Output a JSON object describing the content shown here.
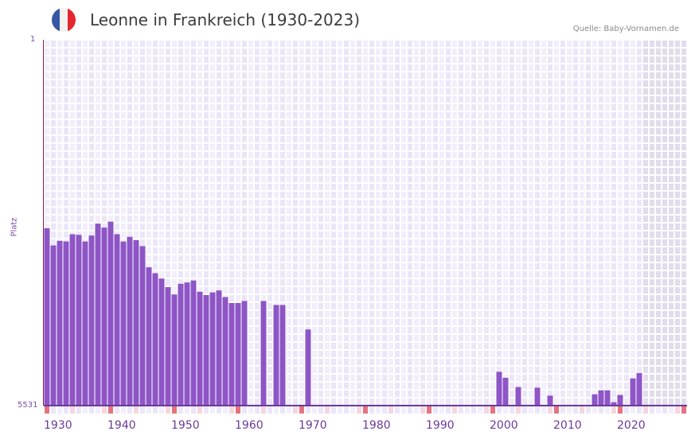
{
  "header": {
    "title": "Leonne in Frankreich (1930-2023)",
    "source": "Quelle: Baby-Vornamen.de",
    "flag_colors": [
      "#3557a6",
      "#f2f2f2",
      "#e5262f"
    ]
  },
  "colors": {
    "bar": "#8e55c6",
    "grid_a": "#f2eefb",
    "grid_b": "#ebe6f7",
    "shade": "#e2dcec",
    "marker_strong": "#e5737e",
    "marker_light": "#f5d6df",
    "axis": "#6a3a9a"
  },
  "chart_data": {
    "type": "bar",
    "title": "Leonne in Frankreich (1930-2023)",
    "xlabel": "",
    "ylabel": "Platz",
    "ylim": [
      5531,
      1
    ],
    "y_ticks": [
      "1",
      "5531"
    ],
    "x_ticks": [
      "1930",
      "1940",
      "1950",
      "1960",
      "1970",
      "1980",
      "1990",
      "2000",
      "2010",
      "2020"
    ],
    "x": [
      1930,
      1931,
      1932,
      1933,
      1934,
      1935,
      1936,
      1937,
      1938,
      1939,
      1940,
      1941,
      1942,
      1943,
      1944,
      1945,
      1946,
      1947,
      1948,
      1949,
      1950,
      1951,
      1952,
      1953,
      1954,
      1955,
      1956,
      1957,
      1958,
      1959,
      1960,
      1961,
      1964,
      1966,
      1967,
      1971,
      2001,
      2002,
      2004,
      2007,
      2009,
      2016,
      2017,
      2018,
      2019,
      2020,
      2022,
      2023
    ],
    "values": [
      2850,
      3110,
      3040,
      3050,
      2940,
      2950,
      3050,
      2960,
      2780,
      2840,
      2750,
      2940,
      3050,
      2980,
      3030,
      3120,
      3440,
      3530,
      3610,
      3740,
      3850,
      3690,
      3670,
      3640,
      3810,
      3860,
      3820,
      3790,
      3890,
      3980,
      3980,
      3950,
      3950,
      4010,
      4010,
      4380,
      5020,
      5110,
      5250,
      5260,
      5380,
      5360,
      5300,
      5300,
      5480,
      5370,
      5120,
      5040
    ]
  }
}
